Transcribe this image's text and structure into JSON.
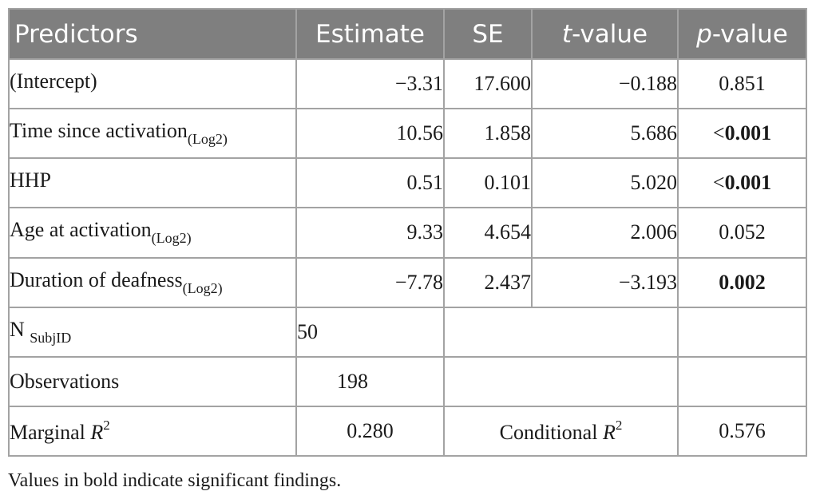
{
  "table": {
    "headers": {
      "predictors": "Predictors",
      "estimate": "Estimate",
      "se": "SE",
      "t_italic": "t",
      "t_rest": "-value",
      "p_italic": "p",
      "p_rest": "-value"
    },
    "rows": [
      {
        "label": "(Intercept)",
        "sub": "",
        "estimate": "−3.31",
        "se": "17.600",
        "t": "−0.188",
        "p_prefix": "",
        "p": "0.851",
        "p_bold": false
      },
      {
        "label": "Time since activation",
        "sub": "(Log2)",
        "estimate": "10.56",
        "se": "1.858",
        "t": "5.686",
        "p_prefix": "<",
        "p": "0.001",
        "p_bold": true
      },
      {
        "label": "HHP",
        "sub": "",
        "estimate": "0.51",
        "se": "0.101",
        "t": "5.020",
        "p_prefix": "<",
        "p": "0.001",
        "p_bold": true
      },
      {
        "label": "Age at activation",
        "sub": "(Log2)",
        "estimate": "9.33",
        "se": "4.654",
        "t": "2.006",
        "p_prefix": "",
        "p": "0.052",
        "p_bold": false
      },
      {
        "label": "Duration of deafness",
        "sub": "(Log2)",
        "estimate": "−7.78",
        "se": "2.437",
        "t": "−3.193",
        "p_prefix": "",
        "p": "0.002",
        "p_bold": true
      }
    ],
    "n_subj": {
      "label": "N",
      "sub": "SubjID",
      "value": "50"
    },
    "observations": {
      "label": "Observations",
      "value": "198"
    },
    "marginal": {
      "label": "Marginal",
      "r": "R",
      "sup": "2",
      "value": "0.280"
    },
    "conditional": {
      "label": "Conditional",
      "r": "R",
      "sup": "2",
      "value": "0.576"
    }
  },
  "footnote": "Values in bold indicate significant findings."
}
